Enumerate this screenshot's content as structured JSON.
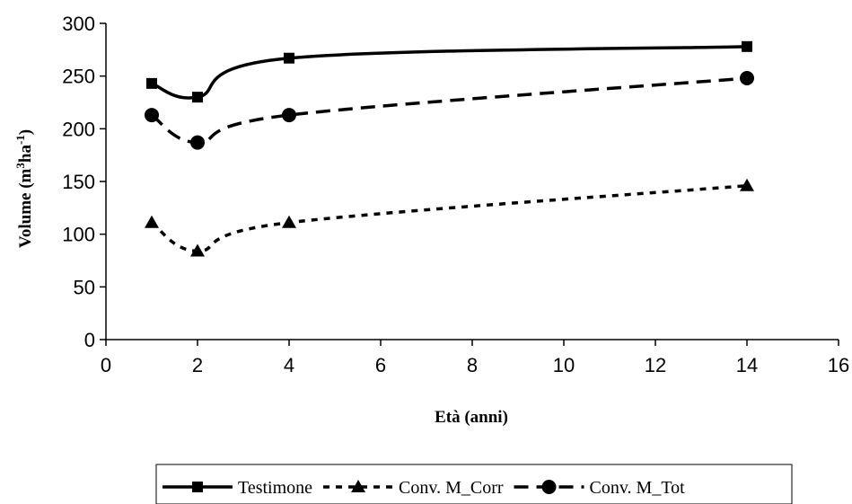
{
  "chart_data": {
    "type": "line",
    "xlabel": "Età (anni)",
    "ylabel": {
      "base": "Volume (m",
      "sup1": "3",
      "mid": "ha",
      "sup2": "-1",
      "end": ")"
    },
    "xlim": [
      0,
      16
    ],
    "ylim": [
      0,
      300
    ],
    "xticks": [
      "0",
      "2",
      "4",
      "6",
      "8",
      "10",
      "12",
      "14",
      "16"
    ],
    "yticks": [
      "0",
      "50",
      "100",
      "150",
      "200",
      "250",
      "300"
    ],
    "grid": false,
    "legend_position": "bottom",
    "series": [
      {
        "name": "Testimone",
        "marker": "square",
        "dash": "solid",
        "points": [
          [
            1,
            243
          ],
          [
            2,
            230
          ],
          [
            4,
            267
          ],
          [
            14,
            278
          ]
        ]
      },
      {
        "name": "Conv. M_Corr",
        "marker": "triangle",
        "dash": "dotted",
        "points": [
          [
            1,
            111
          ],
          [
            2,
            84
          ],
          [
            4,
            111
          ],
          [
            14,
            146
          ]
        ]
      },
      {
        "name": "Conv. M_Tot",
        "marker": "circle",
        "dash": "dashed",
        "points": [
          [
            1,
            213
          ],
          [
            2,
            187
          ],
          [
            4,
            213
          ],
          [
            14,
            248
          ]
        ]
      }
    ]
  }
}
